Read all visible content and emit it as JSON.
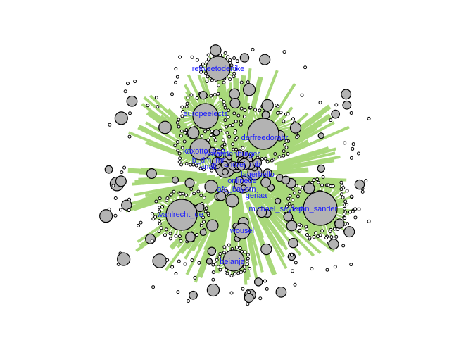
{
  "graph": {
    "colors": {
      "edge": "#a8d87a",
      "node_fill": "#b3b3b3",
      "node_stroke": "#000000",
      "label": "#1a1aff"
    },
    "labels": {
      "retweetodenike": "retweetodenike",
      "europeelects": "europeelects",
      "derfreedorahr": "derfreedorahr",
      "kaxotto_edo": "kaxotto_edo",
      "bbrandenburger": "bbrandenburger",
      "b_dm_mr": "b_dm_mr",
      "analt": "analt",
      "andrej_mb": "andrej_mb",
      "lagerbello": "lagerbello",
      "onlinede": "onlinede",
      "afd_bayern": "afd_bayern",
      "geriaa": "geriaa",
      "wahlrecht_de": "wahlrecht_de",
      "michael_seyfert": "michael_seyfert",
      "jan_sander": "jan_sander",
      "wousel": "wousel",
      "beianja": "beianja"
    }
  }
}
